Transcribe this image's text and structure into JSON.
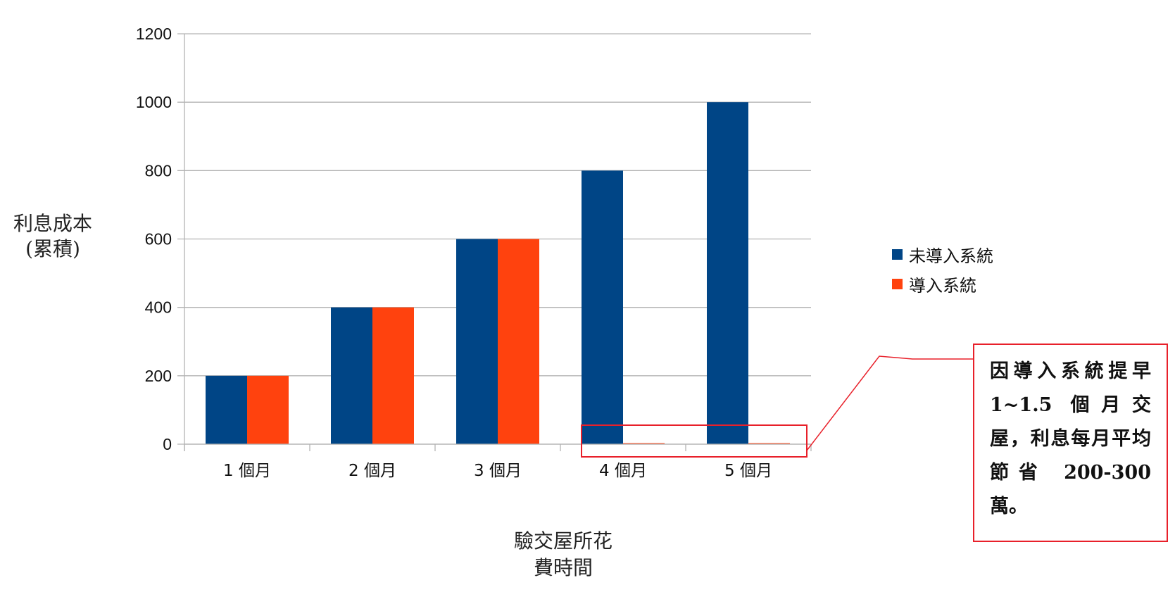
{
  "chart_data": {
    "type": "bar",
    "categories": [
      "1 個月",
      "2 個月",
      "3 個月",
      "4 個月",
      "5 個月"
    ],
    "series": [
      {
        "name": "未導入系統",
        "color": "#004586",
        "values": [
          200,
          400,
          600,
          800,
          1000
        ]
      },
      {
        "name": "導入系統",
        "color": "#ff420e",
        "values": [
          200,
          400,
          600,
          0,
          0
        ]
      }
    ],
    "ylim": [
      0,
      1200
    ],
    "yticks": [
      "0",
      "200",
      "400",
      "600",
      "800",
      "1000",
      "1200"
    ],
    "ylabel": [
      "利息成本",
      "(累積)"
    ],
    "xlabel": [
      "驗交屋所花",
      "費時間"
    ],
    "grid": true,
    "legend_position": "right",
    "annotation": "因導入系統提早 1~1.5 個月交屋，利息每月平均節省 200-300 萬。",
    "highlight_color": "#e8202a"
  }
}
